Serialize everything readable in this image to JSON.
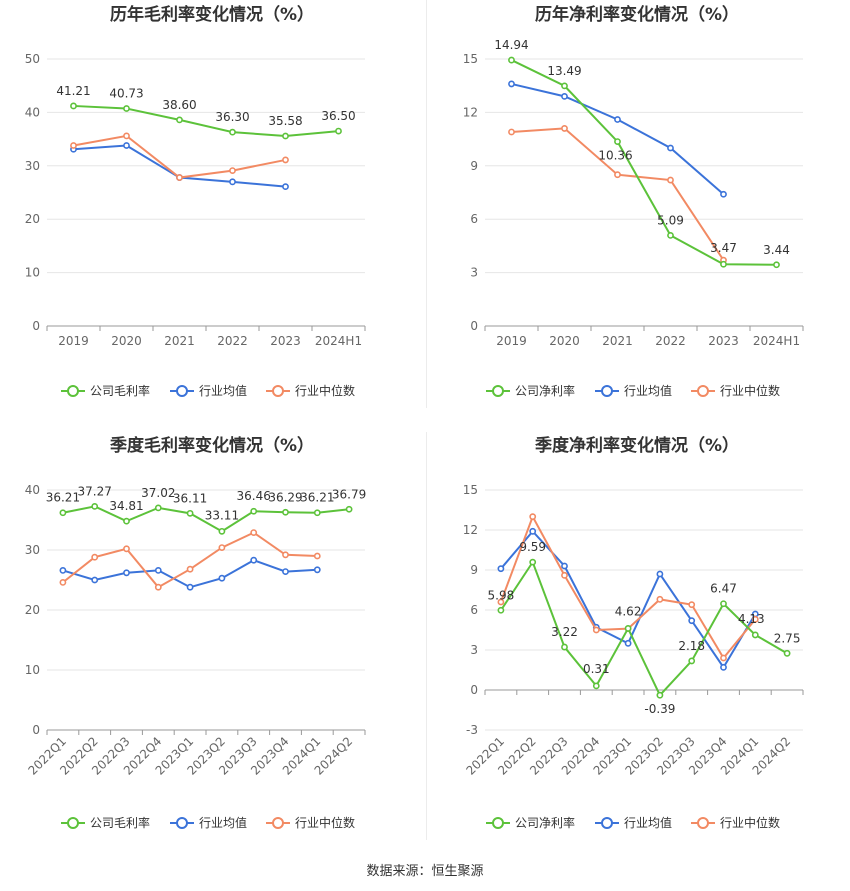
{
  "colors": {
    "company": "#5cc23a",
    "industry_avg": "#3b73d9",
    "industry_median": "#f28a63",
    "grid": "#e6e6e6",
    "axis_text": "#666666",
    "title": "#333333"
  },
  "footer": {
    "source": "数据来源：恒生聚源"
  },
  "chart_data": [
    {
      "type": "line",
      "title": "历年毛利率变化情况（%）",
      "categories": [
        "2019",
        "2020",
        "2021",
        "2022",
        "2023",
        "2024H1"
      ],
      "ylim": [
        0,
        50
      ],
      "yticks": [
        0,
        10,
        20,
        30,
        40,
        50
      ],
      "grid": true,
      "legend_position": "bottom",
      "series": [
        {
          "name": "公司毛利率",
          "values": [
            41.21,
            40.73,
            38.6,
            36.3,
            35.58,
            36.5
          ],
          "labels": [
            "41.21",
            "40.73",
            "38.60",
            "36.30",
            "35.58",
            "36.50"
          ]
        },
        {
          "name": "行业均值",
          "values": [
            33.1,
            33.8,
            27.8,
            27.0,
            26.1,
            null
          ]
        },
        {
          "name": "行业中位数",
          "values": [
            33.8,
            35.6,
            27.8,
            29.1,
            31.1,
            null
          ]
        }
      ]
    },
    {
      "type": "line",
      "title": "历年净利率变化情况（%）",
      "categories": [
        "2019",
        "2020",
        "2021",
        "2022",
        "2023",
        "2024H1"
      ],
      "ylim": [
        0,
        15
      ],
      "yticks": [
        0,
        3,
        6,
        9,
        12,
        15
      ],
      "grid": true,
      "legend_position": "bottom",
      "series": [
        {
          "name": "公司净利率",
          "values": [
            14.94,
            13.49,
            10.36,
            5.09,
            3.47,
            3.44
          ],
          "labels": [
            "14.94",
            "13.49",
            "10.36",
            "5.09",
            "3.47",
            "3.44"
          ]
        },
        {
          "name": "行业均值",
          "values": [
            13.6,
            12.9,
            11.6,
            10.0,
            7.4,
            null
          ]
        },
        {
          "name": "行业中位数",
          "values": [
            10.9,
            11.1,
            8.5,
            8.2,
            3.7,
            null
          ]
        }
      ]
    },
    {
      "type": "line",
      "title": "季度毛利率变化情况（%）",
      "categories": [
        "2022Q1",
        "2022Q2",
        "2022Q3",
        "2022Q4",
        "2023Q1",
        "2023Q2",
        "2023Q3",
        "2023Q4",
        "2024Q1",
        "2024Q2"
      ],
      "ylim": [
        0,
        40
      ],
      "yticks": [
        0,
        10,
        20,
        30,
        40
      ],
      "grid": true,
      "legend_position": "bottom",
      "series": [
        {
          "name": "公司毛利率",
          "values": [
            36.21,
            37.27,
            34.81,
            37.02,
            36.11,
            33.11,
            36.46,
            36.29,
            36.21,
            36.79
          ],
          "labels": [
            "36.21",
            "37.27",
            "34.81",
            "37.02",
            "36.11",
            "33.11",
            "36.46",
            "36.29",
            "36.21",
            "36.79"
          ]
        },
        {
          "name": "行业均值",
          "values": [
            26.6,
            25.0,
            26.2,
            26.6,
            23.8,
            25.3,
            28.3,
            26.4,
            26.7,
            null
          ]
        },
        {
          "name": "行业中位数",
          "values": [
            24.6,
            28.8,
            30.2,
            23.8,
            26.8,
            30.4,
            32.9,
            29.2,
            29.0,
            null
          ]
        }
      ]
    },
    {
      "type": "line",
      "title": "季度净利率变化情况（%）",
      "categories": [
        "2022Q1",
        "2022Q2",
        "2022Q3",
        "2022Q4",
        "2023Q1",
        "2023Q2",
        "2023Q3",
        "2023Q4",
        "2024Q1",
        "2024Q2"
      ],
      "ylim": [
        -3,
        15
      ],
      "yticks": [
        -3,
        0,
        3,
        6,
        9,
        12,
        15
      ],
      "grid": true,
      "legend_position": "bottom",
      "series": [
        {
          "name": "公司净利率",
          "values": [
            5.98,
            9.59,
            3.22,
            0.31,
            4.62,
            -0.39,
            2.18,
            6.47,
            4.13,
            2.75
          ],
          "labels": [
            "5.98",
            "9.59",
            "3.22",
            "0.31",
            "4.62",
            "-0.39",
            "2.18",
            "6.47",
            "4.13",
            "2.75"
          ]
        },
        {
          "name": "行业均值",
          "values": [
            9.1,
            11.9,
            9.3,
            4.7,
            3.5,
            8.7,
            5.2,
            1.7,
            5.7,
            null
          ]
        },
        {
          "name": "行业中位数",
          "values": [
            6.6,
            13.0,
            8.6,
            4.5,
            4.6,
            6.8,
            6.4,
            2.4,
            5.3,
            null
          ]
        }
      ]
    }
  ]
}
